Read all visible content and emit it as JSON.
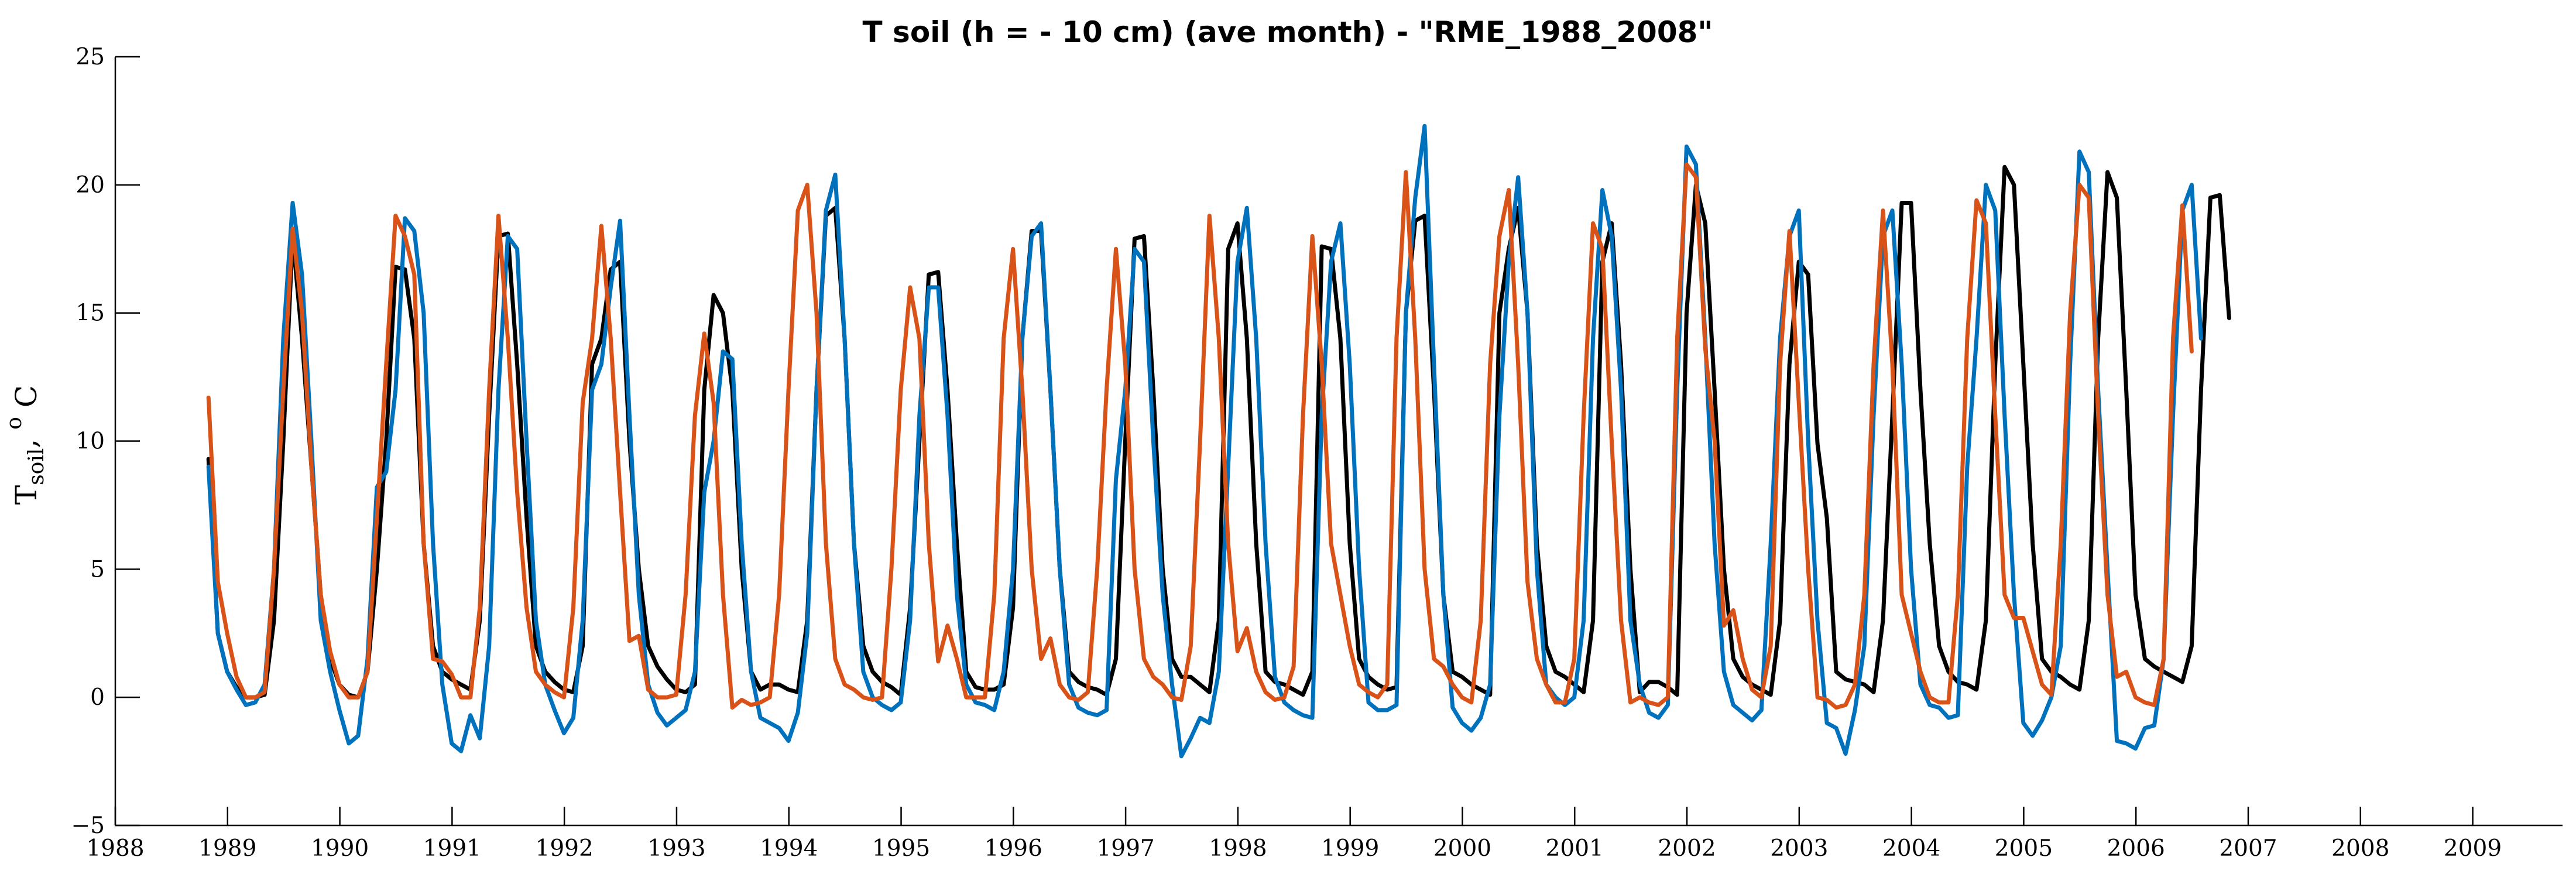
{
  "chart_data": {
    "type": "line",
    "title": "T soil (h = - 10 cm) (ave month) - \"RME_1988_2008\"",
    "ylabel": {
      "main": "T",
      "sub": "soil",
      "suffix": ", ",
      "sup": "o",
      "unit": " C"
    },
    "xlabel": "",
    "xlim": [
      1988,
      2009.8
    ],
    "ylim": [
      -5,
      25
    ],
    "xticks": [
      1988,
      1989,
      1990,
      1991,
      1992,
      1993,
      1994,
      1995,
      1996,
      1997,
      1998,
      1999,
      2000,
      2001,
      2002,
      2003,
      2004,
      2005,
      2006,
      2007,
      2008,
      2009
    ],
    "xtick_labels": [
      "1988",
      "1989",
      "1990",
      "1991",
      "1992",
      "1993",
      "1994",
      "1995",
      "1996",
      "1997",
      "1998",
      "1999",
      "2000",
      "2001",
      "2002",
      "2003",
      "2004",
      "2005",
      "2006",
      "2007",
      "2008",
      "2009"
    ],
    "yticks": [
      -5,
      0,
      5,
      10,
      15,
      20,
      25
    ],
    "ytick_labels": [
      "−5",
      "0",
      "5",
      "10",
      "15",
      "20",
      "25"
    ],
    "grid": false,
    "x_start": 1988.83,
    "x_step": 0.083333,
    "series": [
      {
        "name": "series-black",
        "color": "#000000",
        "values": [
          9.3,
          2.5,
          1.0,
          0.4,
          0.0,
          0.0,
          0.1,
          3.0,
          10.0,
          18.0,
          14.0,
          9.0,
          4.0,
          1.5,
          0.5,
          0.1,
          0.0,
          1.0,
          5.0,
          10.0,
          16.8,
          16.7,
          14.0,
          6.0,
          2.0,
          1.0,
          0.7,
          0.5,
          0.3,
          3.0,
          11.0,
          18.0,
          18.1,
          13.0,
          7.0,
          2.0,
          1.0,
          0.6,
          0.3,
          0.2,
          2.0,
          13.0,
          14.0,
          16.7,
          17.0,
          10.0,
          5.0,
          2.0,
          1.2,
          0.7,
          0.3,
          0.2,
          0.5,
          12.0,
          15.7,
          15.0,
          12.0,
          5.0,
          1.0,
          0.3,
          0.5,
          0.5,
          0.3,
          0.2,
          3.0,
          12.0,
          18.8,
          19.1,
          14.0,
          6.0,
          2.0,
          1.0,
          0.6,
          0.4,
          0.1,
          3.5,
          10.0,
          16.5,
          16.6,
          12.0,
          6.0,
          1.0,
          0.4,
          0.3,
          0.3,
          0.5,
          3.5,
          14.0,
          18.2,
          18.2,
          12.0,
          5.0,
          1.0,
          0.6,
          0.4,
          0.3,
          0.1,
          1.5,
          10.0,
          17.9,
          18.0,
          12.0,
          5.0,
          1.5,
          0.8,
          0.8,
          0.5,
          0.2,
          3.0,
          17.5,
          18.5,
          14.0,
          6.0,
          1.0,
          0.6,
          0.5,
          0.3,
          0.1,
          1.0,
          17.6,
          17.5,
          14.0,
          6.0,
          1.5,
          0.8,
          0.5,
          0.3,
          0.4,
          15.0,
          18.6,
          18.8,
          12.0,
          4.0,
          1.0,
          0.8,
          0.5,
          0.3,
          0.1,
          15.0,
          17.5,
          19.1,
          15.0,
          6.0,
          2.0,
          1.0,
          0.8,
          0.5,
          0.2,
          3.0,
          17.0,
          18.5,
          13.0,
          5.0,
          0.2,
          0.6,
          0.6,
          0.4,
          0.1,
          15.0,
          20.0,
          18.5,
          12.0,
          5.0,
          1.5,
          0.8,
          0.5,
          0.3,
          0.1,
          3.0,
          13.0,
          17.0,
          16.5,
          9.9,
          7.0,
          1.0,
          0.7,
          0.6,
          0.5,
          0.2,
          3.0,
          11.0,
          19.3,
          19.3,
          12.0,
          6.0,
          2.0,
          1.0,
          0.6,
          0.5,
          0.3,
          3.0,
          13.0,
          20.7,
          20.0,
          13.0,
          6.0,
          1.5,
          1.0,
          0.8,
          0.5,
          0.3,
          3.0,
          14.0,
          20.5,
          19.5,
          12.0,
          4.0,
          1.5,
          1.2,
          1.0,
          0.8,
          0.6,
          2.0,
          12.0,
          19.5,
          19.6,
          14.8
        ]
      },
      {
        "name": "series-blue",
        "color": "#0072BD",
        "values": [
          9.0,
          2.5,
          1.0,
          0.3,
          -0.3,
          -0.2,
          0.5,
          5.0,
          14.0,
          19.3,
          16.5,
          10.0,
          3.0,
          1.0,
          -0.5,
          -1.8,
          -1.5,
          1.5,
          8.2,
          8.8,
          12.0,
          18.7,
          18.2,
          15.0,
          6.0,
          0.5,
          -1.8,
          -2.1,
          -0.7,
          -1.6,
          2.0,
          12.0,
          18.0,
          17.5,
          10.0,
          3.0,
          0.5,
          -0.5,
          -1.4,
          -0.8,
          3.0,
          12.0,
          13.0,
          16.0,
          18.6,
          11.0,
          4.0,
          0.5,
          -0.6,
          -1.1,
          -0.8,
          -0.5,
          1.0,
          8.0,
          10.0,
          13.5,
          13.2,
          6.0,
          1.0,
          -0.8,
          -1.0,
          -1.2,
          -1.7,
          -0.6,
          2.5,
          12.0,
          19.0,
          20.4,
          14.0,
          6.0,
          1.0,
          0.0,
          -0.3,
          -0.5,
          -0.2,
          3.0,
          11.0,
          16.0,
          16.0,
          11.0,
          4.0,
          0.5,
          -0.2,
          -0.3,
          -0.5,
          1.0,
          5.0,
          14.0,
          18.0,
          18.5,
          12.0,
          5.0,
          0.5,
          -0.4,
          -0.6,
          -0.7,
          -0.5,
          8.5,
          12.0,
          17.5,
          17.0,
          10.0,
          4.0,
          0.5,
          -2.3,
          -1.6,
          -0.8,
          -1.0,
          1.0,
          9.0,
          17.0,
          19.1,
          14.0,
          6.0,
          0.8,
          -0.2,
          -0.5,
          -0.7,
          -0.8,
          11.0,
          17.0,
          18.5,
          13.0,
          5.0,
          -0.2,
          -0.5,
          -0.5,
          -0.3,
          15.0,
          19.5,
          22.3,
          13.0,
          4.0,
          -0.4,
          -1.0,
          -1.3,
          -0.8,
          0.5,
          11.0,
          17.0,
          20.3,
          15.0,
          5.0,
          0.5,
          0.0,
          -0.3,
          0.0,
          3.0,
          14.0,
          19.8,
          18.0,
          12.0,
          3.0,
          0.5,
          -0.6,
          -0.8,
          -0.3,
          12.0,
          21.5,
          20.8,
          14.0,
          6.0,
          1.0,
          -0.3,
          -0.6,
          -0.9,
          -0.5,
          6.0,
          14.0,
          18.0,
          19.0,
          10.0,
          3.0,
          -1.0,
          -1.2,
          -2.2,
          -0.5,
          2.0,
          11.0,
          18.0,
          19.0,
          13.0,
          5.0,
          0.5,
          -0.3,
          -0.4,
          -0.8,
          -0.7,
          9.0,
          14.0,
          20.0,
          19.0,
          11.0,
          4.0,
          -1.0,
          -1.5,
          -0.9,
          0.0,
          2.0,
          13.0,
          21.3,
          20.5,
          12.0,
          5.0,
          -1.7,
          -1.8,
          -2.0,
          -1.2,
          -1.1,
          1.5,
          11.0,
          19.0,
          20.0,
          14.0
        ]
      },
      {
        "name": "series-orange",
        "color": "#D95319",
        "values": [
          11.7,
          4.5,
          2.5,
          0.8,
          0.0,
          0.0,
          0.2,
          5.0,
          12.0,
          18.3,
          15.0,
          9.0,
          4.0,
          1.8,
          0.5,
          0.0,
          0.0,
          1.0,
          7.0,
          13.0,
          18.8,
          18.0,
          16.5,
          6.0,
          1.5,
          1.4,
          0.9,
          0.0,
          0.0,
          3.5,
          12.0,
          18.8,
          14.0,
          8.0,
          3.5,
          1.0,
          0.5,
          0.2,
          0.0,
          3.5,
          11.5,
          14.0,
          18.4,
          14.0,
          8.0,
          2.2,
          2.4,
          0.3,
          0.0,
          0.0,
          0.1,
          4.0,
          11.0,
          14.2,
          11.5,
          4.0,
          -0.4,
          -0.1,
          -0.3,
          -0.2,
          0.0,
          4.0,
          12.0,
          19.0,
          20.0,
          15.0,
          6.0,
          1.5,
          0.5,
          0.3,
          0.0,
          -0.1,
          0.0,
          5.0,
          12.0,
          16.0,
          14.0,
          6.0,
          1.4,
          2.8,
          1.5,
          0.0,
          0.0,
          0.0,
          4.0,
          14.0,
          17.5,
          12.0,
          5.0,
          1.5,
          2.3,
          0.5,
          0.0,
          -0.1,
          0.2,
          5.0,
          12.0,
          17.5,
          13.0,
          5.0,
          1.5,
          0.8,
          0.5,
          0.0,
          -0.1,
          2.0,
          10.0,
          18.8,
          14.0,
          6.0,
          1.8,
          2.7,
          1.0,
          0.2,
          -0.1,
          0.0,
          1.2,
          11.0,
          18.0,
          13.0,
          6.0,
          4.0,
          2.0,
          0.5,
          0.2,
          0.0,
          0.5,
          14.0,
          20.5,
          14.0,
          5.0,
          1.5,
          1.2,
          0.5,
          0.0,
          -0.2,
          3.0,
          13.0,
          18.0,
          19.8,
          13.0,
          4.5,
          1.5,
          0.5,
          -0.2,
          -0.2,
          1.5,
          11.0,
          18.5,
          17.5,
          10.0,
          3.0,
          -0.2,
          0.0,
          -0.2,
          -0.3,
          0.0,
          14.0,
          20.8,
          20.3,
          13.6,
          10.0,
          2.8,
          3.4,
          1.5,
          0.3,
          0.0,
          2.0,
          13.0,
          18.2,
          11.5,
          5.0,
          0.0,
          -0.1,
          -0.4,
          -0.3,
          0.5,
          4.0,
          13.0,
          19.0,
          13.0,
          4.0,
          2.5,
          1.0,
          0.0,
          -0.2,
          -0.2,
          4.0,
          14.0,
          19.4,
          18.5,
          11.0,
          4.0,
          3.1,
          3.1,
          1.8,
          0.5,
          0.1,
          6.0,
          15.0,
          20.0,
          19.5,
          11.0,
          4.0,
          0.8,
          1.0,
          0.0,
          -0.2,
          -0.3,
          1.5,
          14.0,
          19.2,
          13.5
        ]
      }
    ]
  }
}
